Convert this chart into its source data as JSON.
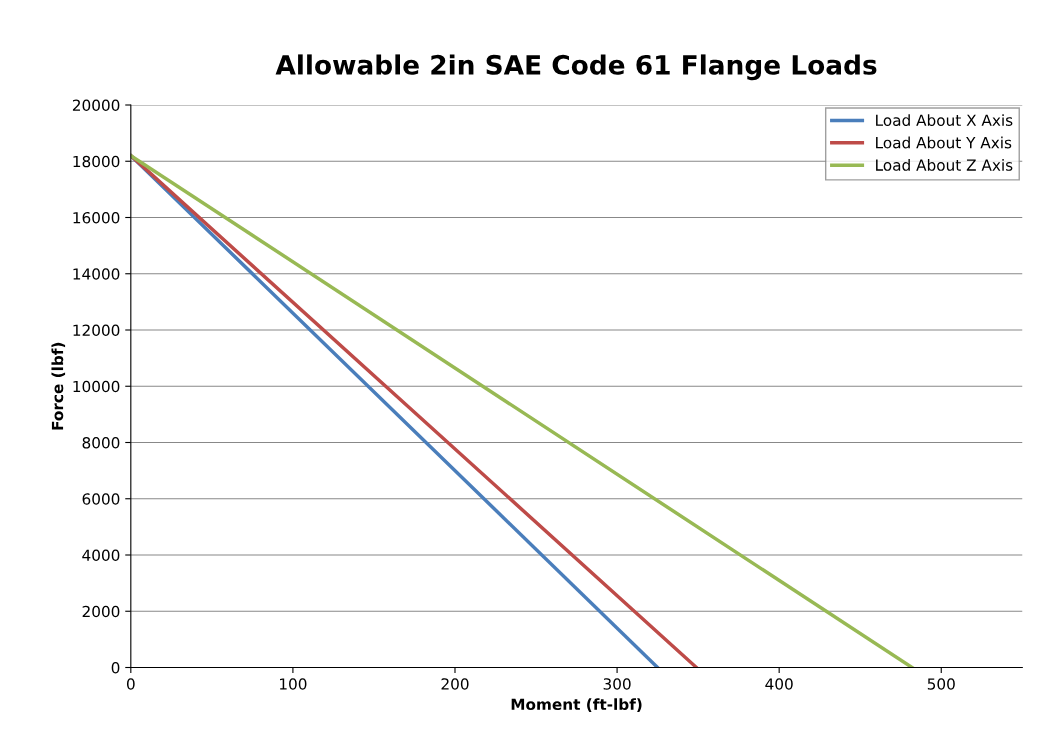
{
  "chart_data": {
    "type": "line",
    "title": "Allowable 2in SAE Code 61 Flange Loads",
    "xlabel": "Moment (ft-lbf)",
    "ylabel": "Force (lbf)",
    "series": [
      {
        "name": "Load About X Axis",
        "color": "#4a7ebb",
        "x": [
          0,
          325
        ],
        "values": [
          18200,
          0
        ]
      },
      {
        "name": "Load About Y Axis",
        "color": "#be4b48",
        "x": [
          0,
          349
        ],
        "values": [
          18200,
          0
        ]
      },
      {
        "name": "Load About Z Axis",
        "color": "#98b954",
        "x": [
          0,
          482
        ],
        "values": [
          18200,
          0
        ]
      }
    ],
    "xlim": [
      0,
      550
    ],
    "xticks": [
      0,
      100,
      200,
      300,
      400,
      500
    ],
    "ylim": [
      0,
      20000
    ],
    "yticks": [
      0,
      2000,
      4000,
      6000,
      8000,
      10000,
      12000,
      14000,
      16000,
      18000,
      20000
    ],
    "grid": "y",
    "legend": "top right",
    "marker": "none",
    "line_style": "solid"
  }
}
